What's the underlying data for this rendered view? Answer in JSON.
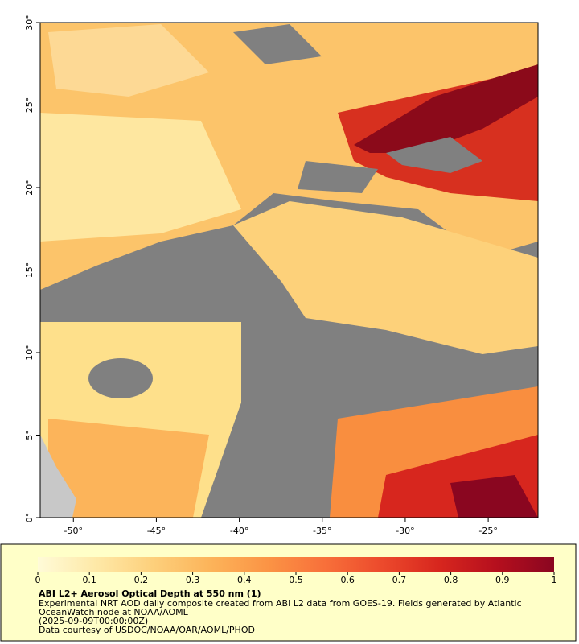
{
  "map": {
    "xlim": [
      -52,
      -22
    ],
    "ylim": [
      0,
      30
    ],
    "xticks": [
      {
        "value": -50,
        "label": "-50°"
      },
      {
        "value": -45,
        "label": "-45°"
      },
      {
        "value": -40,
        "label": "-40°"
      },
      {
        "value": -35,
        "label": "-35°"
      },
      {
        "value": -30,
        "label": "-30°"
      },
      {
        "value": -25,
        "label": "-25°"
      }
    ],
    "yticks": [
      {
        "value": 0,
        "label": "0°"
      },
      {
        "value": 5,
        "label": "5°"
      },
      {
        "value": 10,
        "label": "10°"
      },
      {
        "value": 15,
        "label": "15°"
      },
      {
        "value": 20,
        "label": "20°"
      },
      {
        "value": 25,
        "label": "25°"
      },
      {
        "value": 30,
        "label": "30°"
      }
    ]
  },
  "colorbar": {
    "lim": [
      0,
      1
    ],
    "ticks": [
      0,
      0.1,
      0.2,
      0.3,
      0.4,
      0.5,
      0.6,
      0.7,
      0.8,
      0.9,
      1
    ],
    "colors": [
      "#fffbd8",
      "#fee9a8",
      "#fdd07c",
      "#fcb45a",
      "#fb9445",
      "#f8703a",
      "#ec4a2c",
      "#d7261e",
      "#b50f1e",
      "#8a0620"
    ]
  },
  "caption": {
    "title": "ABI L2+ Aerosol Optical Depth at 550 nm (1)",
    "lines": [
      "Experimental NRT AOD daily composite created from ABI L2 data from GOES-19. Fields generated by Atlantic",
      "OceanWatch node at NOAA/AOML",
      "(2025-09-09T00:00:00Z)",
      "Data courtesy of USDOC/NOAA/OAR/AOML/PHOD"
    ]
  }
}
